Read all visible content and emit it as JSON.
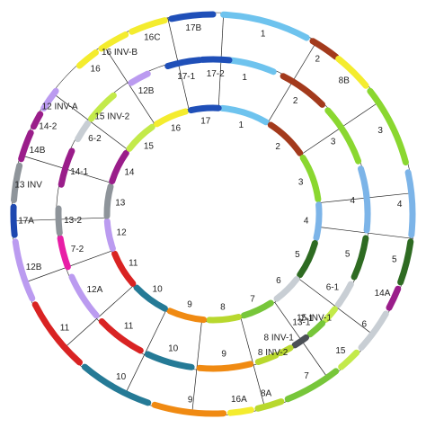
{
  "colors": {
    "1": "#6ec3ee",
    "2": "#a33a1c",
    "3": "#8ad730",
    "4": "#7cb4e8",
    "5": "#2e6b22",
    "6": "#c8ced4",
    "7": "#77c63a",
    "8": "#b8d82e",
    "9": "#f08a12",
    "10": "#257a96",
    "11": "#d92323",
    "12": "#bb9bf0",
    "13": "#8e949a",
    "14": "#9a1d8a",
    "15": "#c3ea4a",
    "16": "#f4ec2e",
    "17": "#1f4fb8",
    "inv8": "#4b5056",
    "inv14": "#e81ea6",
    "inv12": "#7a2b96",
    "inv13": "#1e48b0"
  },
  "rings": {
    "inner": [
      {
        "label": "1",
        "color_key": "1"
      },
      {
        "label": "2",
        "color_key": "2"
      },
      {
        "label": "3",
        "color_key": "3"
      },
      {
        "label": "4",
        "color_key": "4"
      },
      {
        "label": "5",
        "color_key": "5"
      },
      {
        "label": "6",
        "color_key": "6"
      },
      {
        "label": "7",
        "color_key": "7"
      },
      {
        "label": "8",
        "color_key": "8"
      },
      {
        "label": "9",
        "color_key": "9"
      },
      {
        "label": "10",
        "color_key": "10"
      },
      {
        "label": "11",
        "color_key": "11"
      },
      {
        "label": "12",
        "color_key": "12"
      },
      {
        "label": "13",
        "color_key": "13"
      },
      {
        "label": "14",
        "color_key": "14"
      },
      {
        "label": "15",
        "color_key": "15"
      },
      {
        "label": "16",
        "color_key": "16"
      },
      {
        "label": "17",
        "color_key": "17"
      }
    ],
    "middle": [
      {
        "label": "1",
        "color_key": "1"
      },
      {
        "label": "2",
        "color_key": "2"
      },
      {
        "label": "3",
        "color_key": "3"
      },
      {
        "label": "4",
        "color_key": "4"
      },
      {
        "label": "5",
        "color_key": "5"
      },
      {
        "label": "6-1",
        "color_key": "6"
      },
      {
        "label": "15 INV-1",
        "color_key": "15"
      },
      {
        "label": "7-1",
        "color_key": "7"
      },
      {
        "label": "13-1",
        "color_key": "inv8"
      },
      {
        "label": "8 INV-1",
        "color_key": "8"
      },
      {
        "label": "8 INV-2",
        "color_key": "8"
      },
      {
        "label": "9",
        "color_key": "9"
      },
      {
        "label": "10",
        "color_key": "10"
      },
      {
        "label": "11",
        "color_key": "11"
      },
      {
        "label": "12A",
        "color_key": "12"
      },
      {
        "label": "7-2",
        "color_key": "inv14"
      },
      {
        "label": "13-2",
        "color_key": "13"
      },
      {
        "label": "14-1",
        "color_key": "14"
      },
      {
        "label": "6-2",
        "color_key": "6"
      },
      {
        "label": "15 INV-2",
        "color_key": "15"
      },
      {
        "label": "12B",
        "color_key": "12"
      },
      {
        "label": "17-1",
        "color_key": "17"
      },
      {
        "label": "17-2",
        "color_key": "17"
      }
    ],
    "outer": [
      {
        "label": "1",
        "color_key": "1"
      },
      {
        "label": "2",
        "color_key": "2"
      },
      {
        "label": "8B",
        "color_key": "16"
      },
      {
        "label": "3",
        "color_key": "3"
      },
      {
        "label": "4",
        "color_key": "4"
      },
      {
        "label": "5",
        "color_key": "5"
      },
      {
        "label": "14A",
        "color_key": "14"
      },
      {
        "label": "6",
        "color_key": "6"
      },
      {
        "label": "15",
        "color_key": "15"
      },
      {
        "label": "7",
        "color_key": "7"
      },
      {
        "label": "8A",
        "color_key": "8"
      },
      {
        "label": "16A",
        "color_key": "16"
      },
      {
        "label": "9",
        "color_key": "9"
      },
      {
        "label": "10",
        "color_key": "10"
      },
      {
        "label": "11",
        "color_key": "11"
      },
      {
        "label": "12B",
        "color_key": "12"
      },
      {
        "label": "17A",
        "color_key": "inv13"
      },
      {
        "label": "13 INV",
        "color_key": "13"
      },
      {
        "label": "14B",
        "color_key": "14"
      },
      {
        "label": "14-2",
        "color_key": "14"
      },
      {
        "label": "12 INV-A",
        "color_key": "12"
      },
      {
        "label": "16",
        "color_key": "16"
      },
      {
        "label": "16 INV-B",
        "color_key": "16"
      },
      {
        "label": "16C",
        "color_key": "16"
      },
      {
        "label": "17B",
        "color_key": "17"
      }
    ]
  }
}
